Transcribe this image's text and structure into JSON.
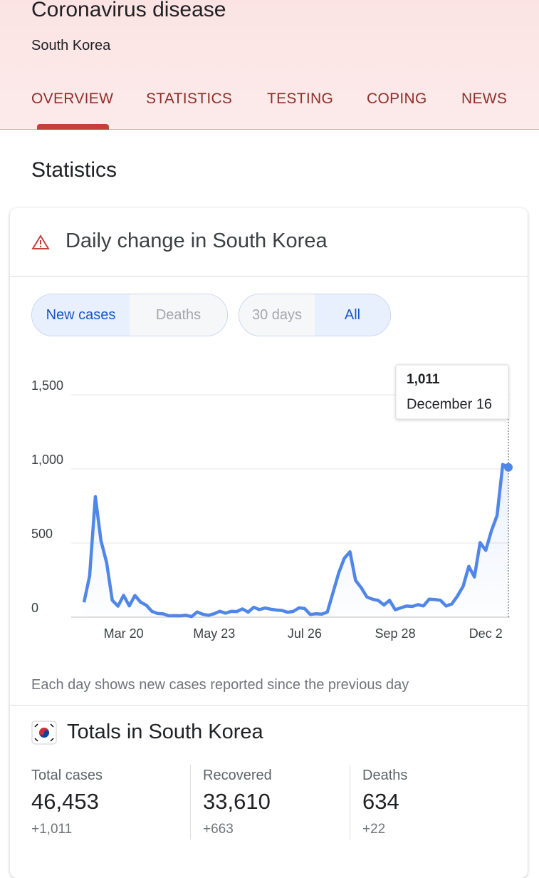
{
  "header": {
    "title": "Coronavirus disease",
    "subtitle": "South Korea",
    "tabs": [
      "OVERVIEW",
      "STATISTICS",
      "TESTING",
      "COPING",
      "NEWS"
    ]
  },
  "section_title": "Statistics",
  "card": {
    "title": "Daily change in South Korea",
    "toggles": [
      [
        "New cases",
        "Deaths"
      ],
      [
        "30 days",
        "All"
      ]
    ],
    "footnote": "Each day shows new cases reported since the previous day"
  },
  "chart_data": {
    "type": "line",
    "categories": [
      null,
      null,
      null,
      null,
      null,
      null,
      null,
      "Mar 20",
      null,
      null,
      null,
      null,
      null,
      null,
      null,
      null,
      null,
      null,
      null,
      null,
      null,
      null,
      null,
      "May 23",
      null,
      null,
      null,
      null,
      null,
      null,
      null,
      null,
      null,
      null,
      null,
      null,
      null,
      null,
      null,
      "Jul 26",
      null,
      null,
      null,
      null,
      null,
      null,
      null,
      null,
      null,
      null,
      null,
      null,
      null,
      null,
      null,
      "Sep 28",
      null,
      null,
      null,
      null,
      null,
      null,
      null,
      null,
      null,
      null,
      null,
      null,
      null,
      null,
      null,
      "Dec 2",
      null,
      null,
      null,
      null
    ],
    "series": [
      {
        "name": "New cases",
        "color": "#4f86e8",
        "values": [
          100,
          280,
          813,
          516,
          367,
          114,
          74,
          147,
          76,
          146,
          101,
          81,
          39,
          25,
          22,
          9,
          10,
          9,
          13,
          4,
          35,
          19,
          13,
          23,
          40,
          27,
          39,
          38,
          56,
          34,
          67,
          51,
          62,
          54,
          48,
          45,
          33,
          39,
          63,
          58,
          18,
          23,
          20,
          34,
          166,
          297,
          397,
          441,
          248,
          198,
          136,
          121,
          113,
          82,
          114,
          50,
          63,
          75,
          72,
          84,
          76,
          121,
          119,
          114,
          75,
          89,
          143,
          208,
          343,
          271,
          503,
          451,
          583,
          686,
          1030,
          1011
        ]
      }
    ],
    "ylim": [
      0,
      1500
    ],
    "yticks": [
      0,
      500,
      {
        "value": 1000,
        "label": "1,000"
      },
      {
        "value": 1500,
        "label": "1,500"
      }
    ],
    "grid": true,
    "tooltip": {
      "value": "1,011",
      "date": "December 16"
    }
  },
  "totals": {
    "title": "Totals in South Korea",
    "columns": [
      {
        "label": "Total cases",
        "value": "46,453",
        "change": "+1,011"
      },
      {
        "label": "Recovered",
        "value": "33,610",
        "change": "+663"
      },
      {
        "label": "Deaths",
        "value": "634",
        "change": "+22"
      }
    ]
  }
}
